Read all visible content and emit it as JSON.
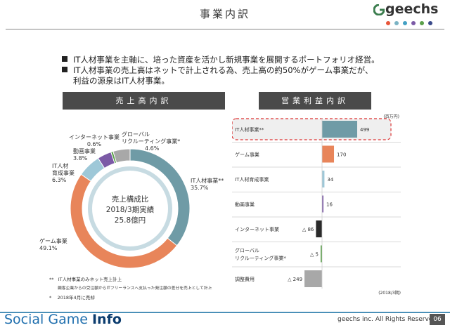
{
  "header": {
    "title": "事業内訳",
    "logo": "geechs",
    "dot_colors": [
      "#e8563a",
      "#7ab3c4",
      "#43a0c4",
      "#7b5aa6",
      "#5aa04a",
      "#3a4a8a"
    ]
  },
  "bullets": [
    "IT人材事業を主軸に、培った資産を活かし新規事業を展開するポートフォリオ経営。",
    "IT人材事業の売上高はネットで計上される為、売上高の約50%がゲーム事業だが、",
    "利益の源泉はIT人材事業。"
  ],
  "left_header": "売上高内訳",
  "right_header": "営業利益内訳",
  "donut_center": [
    "売上構成比",
    "2018/3期実績",
    "25.8億円"
  ],
  "footnotes": [
    {
      "mark": "**",
      "text": "IT人材事業のみネット売上計上"
    },
    {
      "mark": "",
      "text": "顧客企業からの受注額からITフリーランスへ支払った発注額の差分を売上として計上"
    },
    {
      "mark": "*",
      "text": "2018年4月に売却"
    }
  ],
  "unit_label": "(百万円)",
  "period_label": "(2018/3期)",
  "footer": {
    "brand_a": "Social Game ",
    "brand_b": "Info",
    "copyright": "geechs inc. All Rights Reserved.",
    "page": "06"
  },
  "chart_data": [
    {
      "type": "pie",
      "title": "売上高内訳",
      "series": [
        {
          "label": "IT人材事業**",
          "value": 35.7,
          "value_text": "35.7%",
          "color": "#6f9ba6"
        },
        {
          "label": "ゲーム事業",
          "value": 49.1,
          "value_text": "49.1%",
          "color": "#e8855a"
        },
        {
          "label": "IT人材育成事業",
          "value": 6.3,
          "value_text": "6.3%",
          "color": "#9ec8d8"
        },
        {
          "label": "動画事業",
          "value": 3.8,
          "value_text": "3.8%",
          "color": "#7b5aa6"
        },
        {
          "label": "インターネット事業",
          "value": 0.6,
          "value_text": "0.6%",
          "color": "#5aa04a"
        },
        {
          "label": "グローバルリクルーティング事業*",
          "value": 4.6,
          "value_text": "4.6%",
          "color": "#a8a8a8"
        }
      ]
    },
    {
      "type": "bar",
      "title": "営業利益内訳",
      "orientation": "horizontal",
      "unit": "百万円",
      "categories": [
        "IT人材事業**",
        "ゲーム事業",
        "IT人材育成事業",
        "動画事業",
        "インターネット事業",
        "グローバルリクルーティング事業*",
        "調整費用"
      ],
      "values": [
        499,
        170,
        34,
        16,
        -86,
        -5,
        -249
      ],
      "value_labels": [
        "499",
        "170",
        "34",
        "16",
        "△ 86",
        "△ 5",
        "△ 249"
      ],
      "colors": [
        "#6f9ba6",
        "#e8855a",
        "#9ec8d8",
        "#7b5aa6",
        "#2a2a2a",
        "#5aa04a",
        "#a8a8a8"
      ],
      "highlight": "IT人材事業**"
    }
  ]
}
